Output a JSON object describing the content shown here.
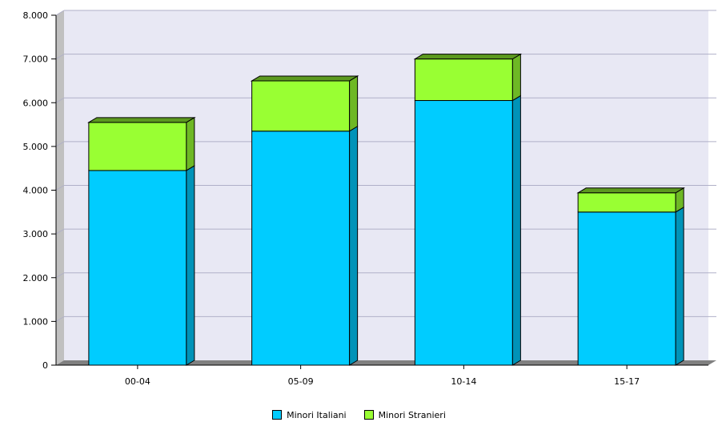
{
  "chart_data": {
    "type": "bar",
    "stacked": true,
    "three_d": true,
    "categories": [
      "00-04",
      "05-09",
      "10-14",
      "15-17"
    ],
    "series": [
      {
        "name": "Minori Italiani",
        "values": [
          4450,
          5350,
          6050,
          3500
        ],
        "color": "#00CCFF"
      },
      {
        "name": "Minori Stranieri",
        "values": [
          1100,
          1150,
          950,
          440
        ],
        "color": "#99FF33"
      }
    ],
    "ylim": [
      0,
      8000
    ],
    "yticks": [
      0,
      1000,
      2000,
      3000,
      4000,
      5000,
      6000,
      7000,
      8000
    ],
    "ytick_labels": [
      "0",
      "1.000",
      "2.000",
      "3.000",
      "4.000",
      "5.000",
      "6.000",
      "7.000",
      "8.000"
    ],
    "grid": true,
    "legend_position": "bottom-center",
    "title": "",
    "xlabel": "",
    "ylabel": ""
  },
  "colors": {
    "plot_background": "#E8E8F4",
    "gridline": "#B0B0C8",
    "wall": "#C0C0C0",
    "floor": "#808080"
  }
}
